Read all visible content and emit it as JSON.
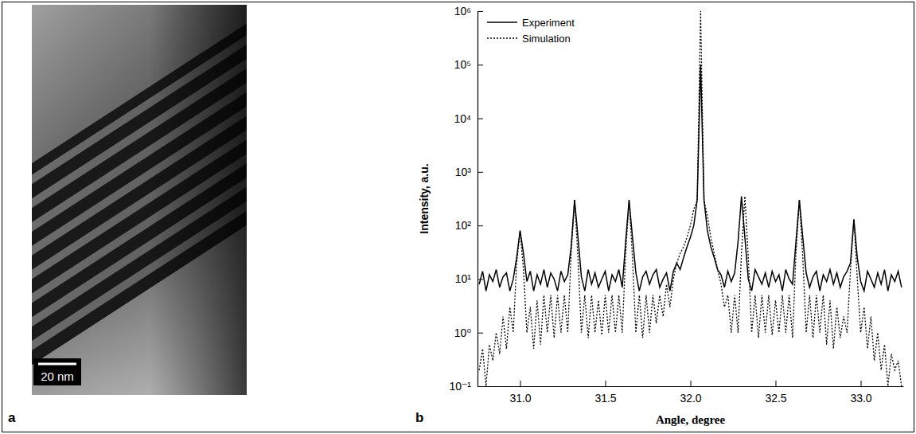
{
  "image_panel": {
    "panel_label": "a",
    "scale_bar_label": "20 nm"
  },
  "chart_data": {
    "type": "line",
    "panel_label": "b",
    "x_label": "Angle, degree",
    "y_label": "Intensity, a.u.",
    "log": "y",
    "legend": "top-left",
    "xlim": [
      30.75,
      33.25
    ],
    "xticks": [
      {
        "value": 31,
        "label": "31.0"
      },
      31.5,
      {
        "value": 32,
        "label": "32.0"
      },
      32.5,
      {
        "value": 33,
        "label": "33.0"
      }
    ],
    "ylim": [
      0.1,
      1000000
    ],
    "yticks": [
      {
        "value": 0.1,
        "label": "10⁻¹"
      },
      {
        "value": 1,
        "label": "10⁰"
      },
      {
        "value": 10,
        "label": "10¹"
      },
      {
        "value": 100,
        "label": "10²"
      },
      {
        "value": 1000,
        "label": "10³"
      },
      {
        "value": 10000,
        "label": "10⁴"
      },
      {
        "value": 100000,
        "label": "10⁵"
      },
      {
        "value": 1000000,
        "label": "10⁶"
      }
    ],
    "x": [
      30.76,
      30.78,
      30.8,
      30.82,
      30.84,
      30.86,
      30.88,
      30.9,
      30.92,
      30.94,
      30.96,
      30.98,
      31.0,
      31.02,
      31.04,
      31.06,
      31.08,
      31.1,
      31.12,
      31.14,
      31.16,
      31.18,
      31.2,
      31.22,
      31.24,
      31.26,
      31.28,
      31.3,
      31.32,
      31.34,
      31.36,
      31.38,
      31.4,
      31.42,
      31.44,
      31.46,
      31.48,
      31.5,
      31.52,
      31.54,
      31.56,
      31.58,
      31.6,
      31.62,
      31.64,
      31.66,
      31.68,
      31.7,
      31.72,
      31.74,
      31.76,
      31.78,
      31.8,
      31.82,
      31.84,
      31.86,
      31.88,
      31.9,
      31.92,
      31.94,
      31.96,
      31.98,
      32.0,
      32.02,
      32.04,
      32.06,
      32.08,
      32.1,
      32.12,
      32.14,
      32.16,
      32.18,
      32.2,
      32.22,
      32.24,
      32.26,
      32.28,
      32.3,
      32.32,
      32.34,
      32.36,
      32.38,
      32.4,
      32.42,
      32.44,
      32.46,
      32.48,
      32.5,
      32.52,
      32.54,
      32.56,
      32.58,
      32.6,
      32.62,
      32.64,
      32.66,
      32.68,
      32.7,
      32.72,
      32.74,
      32.76,
      32.78,
      32.8,
      32.82,
      32.84,
      32.86,
      32.88,
      32.9,
      32.92,
      32.94,
      32.96,
      32.98,
      33.0,
      33.02,
      33.04,
      33.06,
      33.08,
      33.1,
      33.12,
      33.14,
      33.16,
      33.18,
      33.2,
      33.22,
      33.24
    ],
    "series": [
      {
        "name": "Experiment",
        "color": "#000000",
        "line_style": "solid",
        "values": [
          8,
          14,
          6,
          12,
          9,
          15,
          7,
          11,
          13,
          6,
          10,
          25,
          80,
          30,
          9,
          14,
          6,
          12,
          8,
          15,
          7,
          13,
          10,
          6,
          14,
          9,
          12,
          40,
          300,
          60,
          11,
          6,
          15,
          8,
          13,
          7,
          10,
          14,
          6,
          12,
          9,
          15,
          7,
          50,
          300,
          60,
          13,
          6,
          11,
          14,
          8,
          12,
          15,
          7,
          10,
          13,
          6,
          14,
          20,
          15,
          25,
          40,
          60,
          100,
          300,
          100000,
          300,
          80,
          40,
          25,
          15,
          12,
          7,
          14,
          9,
          13,
          50,
          350,
          60,
          10,
          6,
          15,
          11,
          8,
          13,
          7,
          14,
          9,
          12,
          6,
          15,
          10,
          8,
          50,
          300,
          60,
          13,
          7,
          11,
          14,
          6,
          12,
          9,
          15,
          8,
          13,
          7,
          11,
          14,
          20,
          130,
          25,
          9,
          6,
          14,
          10,
          7,
          13,
          8,
          15,
          6,
          12,
          9,
          14,
          7
        ]
      },
      {
        "name": "Simulation",
        "color": "#000000",
        "line_style": "dotted",
        "values": [
          0.2,
          0.5,
          0.1,
          0.6,
          0.3,
          1,
          0.4,
          2,
          0.5,
          3,
          1,
          20,
          80,
          15,
          1,
          3,
          0.5,
          4,
          0.6,
          5,
          1,
          5,
          0.8,
          5,
          1,
          5,
          1,
          30,
          300,
          25,
          1,
          5,
          0.8,
          5,
          1,
          4,
          0.9,
          5,
          1,
          5,
          1,
          5,
          1,
          30,
          300,
          25,
          1,
          5,
          0.8,
          5,
          1,
          5,
          1.5,
          5,
          2,
          8,
          3,
          10,
          20,
          30,
          40,
          60,
          100,
          200,
          300,
          1000000,
          300,
          150,
          60,
          30,
          15,
          8,
          3,
          5,
          1,
          5,
          1,
          30,
          350,
          25,
          1,
          5,
          0.8,
          5,
          1,
          5,
          0.9,
          4,
          1,
          5,
          1,
          5,
          0.8,
          30,
          300,
          25,
          1,
          5,
          0.8,
          5,
          1,
          5,
          0.6,
          4,
          0.5,
          3,
          0.8,
          2,
          1,
          15,
          130,
          10,
          1,
          3,
          0.5,
          2,
          0.3,
          1,
          0.2,
          0.6,
          0.1,
          0.4,
          0.2,
          0.3,
          0.1
        ]
      }
    ]
  }
}
